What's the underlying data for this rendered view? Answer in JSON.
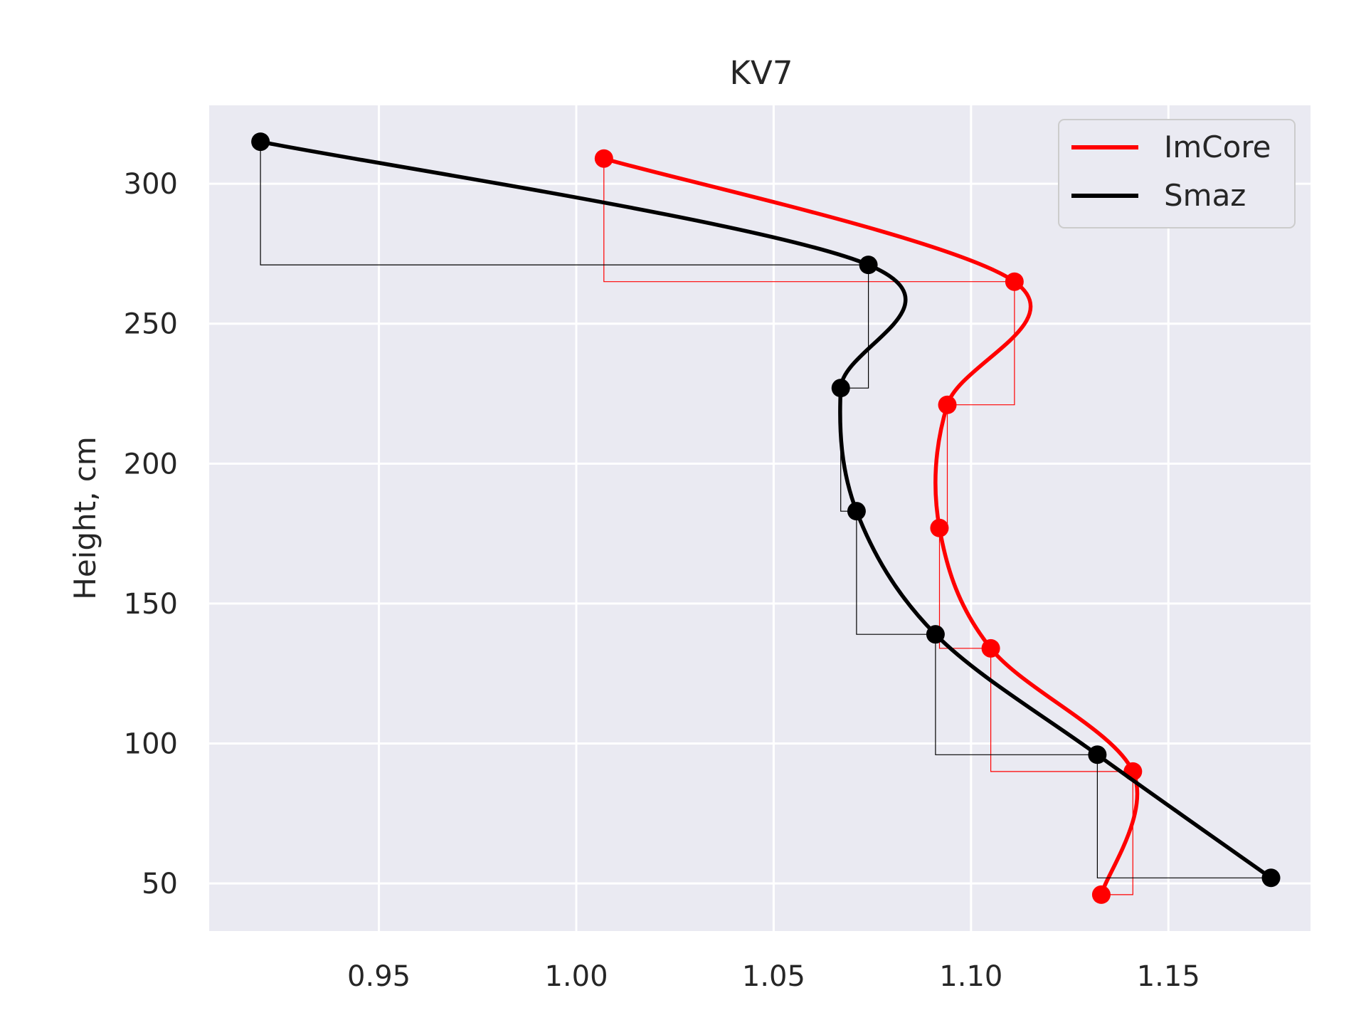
{
  "chart_data": {
    "type": "line",
    "title": "KV7",
    "xlabel": "",
    "ylabel": "Height, cm",
    "xlim": [
      0.907,
      1.186
    ],
    "ylim": [
      33,
      328
    ],
    "x_ticks": [
      0.95,
      1.0,
      1.05,
      1.1,
      1.15
    ],
    "x_tick_labels": [
      "0.95",
      "1.00",
      "1.05",
      "1.10",
      "1.15"
    ],
    "y_ticks": [
      50,
      100,
      150,
      200,
      250,
      300
    ],
    "y_tick_labels": [
      "50",
      "100",
      "150",
      "200",
      "250",
      "300"
    ],
    "grid": true,
    "legend_position": "top-right",
    "series": [
      {
        "name": "ImCore",
        "color": "#ff0000",
        "points": [
          {
            "x": 1.133,
            "y": 46
          },
          {
            "x": 1.141,
            "y": 90
          },
          {
            "x": 1.105,
            "y": 134
          },
          {
            "x": 1.092,
            "y": 177
          },
          {
            "x": 1.094,
            "y": 221
          },
          {
            "x": 1.111,
            "y": 265
          },
          {
            "x": 1.007,
            "y": 309
          }
        ]
      },
      {
        "name": "Smaz",
        "color": "#000000",
        "points": [
          {
            "x": 1.176,
            "y": 52
          },
          {
            "x": 1.132,
            "y": 96
          },
          {
            "x": 1.091,
            "y": 139
          },
          {
            "x": 1.071,
            "y": 183
          },
          {
            "x": 1.067,
            "y": 227
          },
          {
            "x": 1.074,
            "y": 271
          },
          {
            "x": 0.92,
            "y": 315
          }
        ]
      }
    ]
  }
}
